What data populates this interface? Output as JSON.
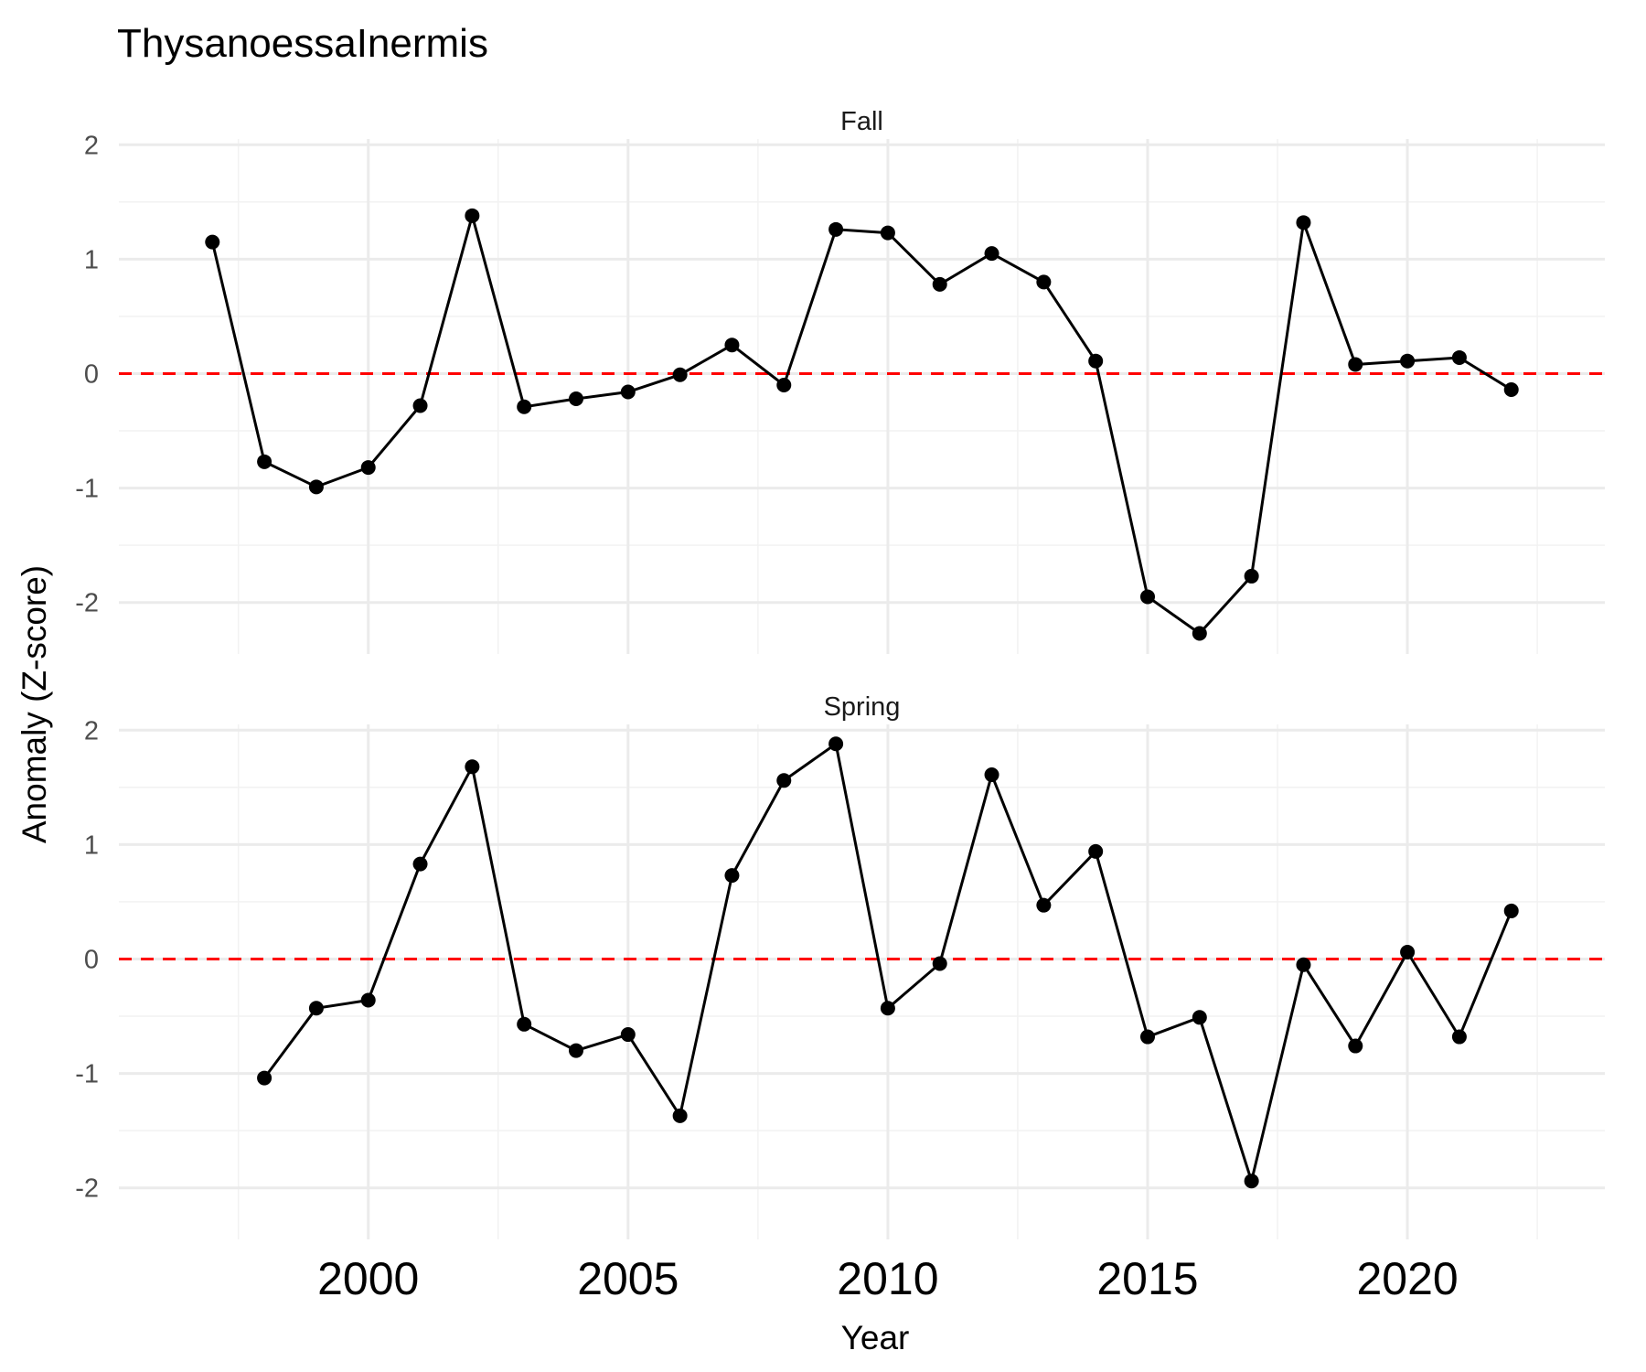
{
  "chart_data": {
    "type": "line",
    "title": "ThysanoessaInermis",
    "xlabel": "Year",
    "ylabel": "Anomaly (Z-score)",
    "xlim": [
      1995.2,
      2023.8
    ],
    "ylim": [
      -2.45,
      2.05
    ],
    "x_ticks": [
      2000,
      2005,
      2010,
      2015,
      2020
    ],
    "y_ticks": [
      -2,
      -1,
      0,
      1,
      2
    ],
    "reference_line": {
      "y": 0,
      "color": "#ff0000",
      "style": "dashed"
    },
    "grid": true,
    "colors": {
      "line": "#000000",
      "points": "#000000",
      "reference": "#ff0000"
    },
    "panels": [
      {
        "name": "Fall",
        "x": [
          1997,
          1998,
          1999,
          2000,
          2001,
          2002,
          2003,
          2004,
          2005,
          2006,
          2007,
          2008,
          2009,
          2010,
          2011,
          2012,
          2013,
          2014,
          2015,
          2016,
          2017,
          2018,
          2019,
          2020,
          2021,
          2022
        ],
        "values": [
          1.15,
          -0.77,
          -0.99,
          -0.82,
          -0.28,
          1.38,
          -0.29,
          -0.22,
          -0.16,
          -0.01,
          0.25,
          -0.1,
          1.26,
          1.23,
          0.78,
          1.05,
          0.8,
          0.11,
          -1.95,
          -2.27,
          -1.77,
          1.32,
          0.08,
          0.11,
          0.14,
          -0.14
        ]
      },
      {
        "name": "Spring",
        "x": [
          1998,
          1999,
          2000,
          2001,
          2002,
          2003,
          2004,
          2005,
          2006,
          2007,
          2008,
          2009,
          2010,
          2011,
          2012,
          2013,
          2014,
          2015,
          2016,
          2017,
          2018,
          2019,
          2020,
          2021,
          2022
        ],
        "values": [
          -1.04,
          -0.43,
          -0.36,
          0.83,
          1.68,
          -0.57,
          -0.8,
          -0.66,
          -1.37,
          0.73,
          1.56,
          1.88,
          -0.43,
          -0.04,
          1.61,
          0.47,
          0.94,
          -0.68,
          -0.51,
          -1.94,
          -0.05,
          -0.76,
          0.06,
          -0.68,
          0.42
        ]
      }
    ]
  }
}
